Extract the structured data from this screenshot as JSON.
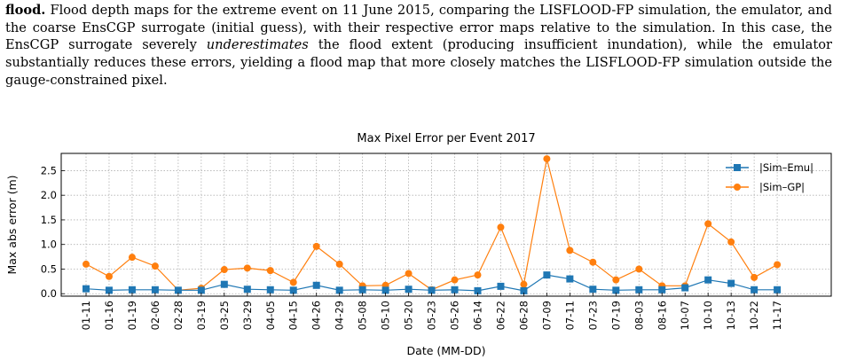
{
  "caption": {
    "lead": "flood.",
    "part1": " Flood depth maps for the extreme event on 11 June 2015, comparing the LISFLOOD-FP simulation, the emulator, and the coarse EnsCGP surrogate (initial guess), with their respective error maps relative to the simulation. In this case, the EnsCGP surrogate severely ",
    "emphasis": "underestimates",
    "part2": " the flood extent (producing insufficient inundation), while the emulator substantially reduces these errors, yielding a flood map that more closely matches the LISFLOOD-FP simulation outside the gauge-constrained pixel."
  },
  "colors": {
    "emu": "#1f77b4",
    "gp": "#ff7f0e",
    "grid": "#b0b0b0"
  },
  "chart_data": {
    "type": "line",
    "title": "Max Pixel Error per Event 2017",
    "xlabel": "Date (MM-DD)",
    "ylabel": "Max abs error (m)",
    "ylim": [
      -0.05,
      2.85
    ],
    "yticks": [
      0.0,
      0.5,
      1.0,
      1.5,
      2.0,
      2.5
    ],
    "yticklabels": [
      "0.0",
      "0.5",
      "1.0",
      "1.5",
      "2.0",
      "2.5"
    ],
    "grid": true,
    "legend": "top-right",
    "categories": [
      "01-11",
      "01-16",
      "01-19",
      "02-06",
      "02-28",
      "03-19",
      "03-25",
      "03-29",
      "04-05",
      "04-15",
      "04-26",
      "04-29",
      "05-08",
      "05-10",
      "05-20",
      "05-23",
      "05-26",
      "06-14",
      "06-22",
      "06-28",
      "07-09",
      "07-11",
      "07-23",
      "07-19",
      "08-03",
      "08-16",
      "10-07",
      "10-10",
      "10-13",
      "10-22",
      "11-17"
    ],
    "series": [
      {
        "name": "|Sim–Emu|",
        "marker": "square",
        "values": [
          0.1,
          0.07,
          0.08,
          0.08,
          0.07,
          0.07,
          0.19,
          0.09,
          0.08,
          0.07,
          0.17,
          0.07,
          0.08,
          0.07,
          0.09,
          0.07,
          0.08,
          0.06,
          0.15,
          0.06,
          0.38,
          0.3,
          0.09,
          0.07,
          0.08,
          0.08,
          0.12,
          0.28,
          0.21,
          0.08,
          0.08
        ]
      },
      {
        "name": "|Sim–GP|",
        "marker": "circle",
        "values": [
          0.6,
          0.35,
          0.74,
          0.56,
          0.07,
          0.11,
          0.49,
          0.52,
          0.47,
          0.23,
          0.96,
          0.6,
          0.16,
          0.17,
          0.41,
          0.08,
          0.28,
          0.38,
          1.35,
          0.19,
          2.74,
          0.88,
          0.64,
          0.28,
          0.5,
          0.16,
          0.16,
          1.42,
          1.05,
          0.33,
          0.59
        ]
      }
    ]
  }
}
